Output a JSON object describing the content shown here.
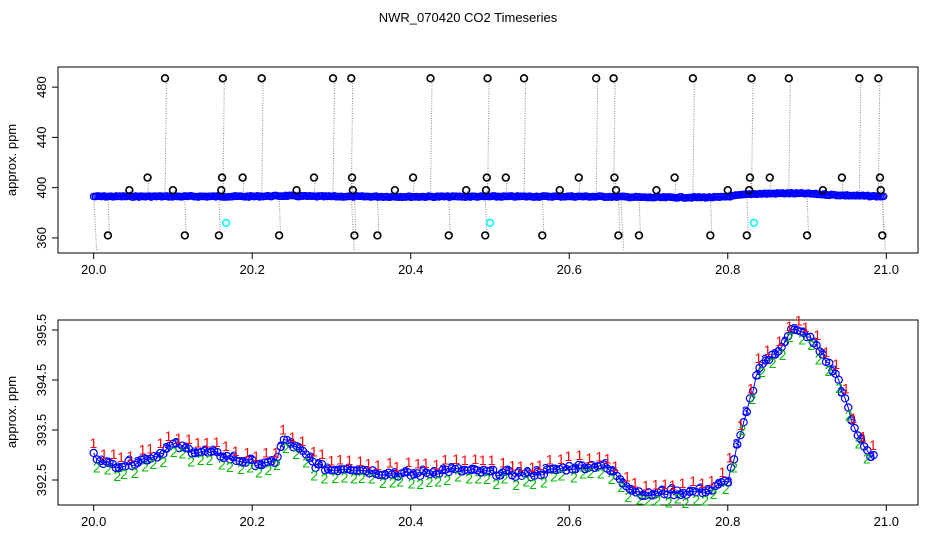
{
  "title": "NWR_070420  CO2 Timeseries",
  "chart_data": [
    {
      "type": "scatter",
      "ylabel": "approx. ppm",
      "xlim": [
        19.955,
        21.04
      ],
      "ylim": [
        348,
        496
      ],
      "xticks": [
        20.0,
        20.2,
        20.4,
        20.6,
        20.8,
        21.0
      ],
      "xtick_labels": [
        "20.0",
        "20.2",
        "20.4",
        "20.6",
        "20.8",
        "21.0"
      ],
      "yticks": [
        360,
        400,
        440,
        480
      ],
      "ytick_labels": [
        "360",
        "400",
        "440",
        "480"
      ],
      "colors": {
        "series": "#0000ff",
        "spikes": "#000000",
        "flagged": "#00ffff",
        "trace": "#888888"
      },
      "baseline": {
        "x": [
          20.0,
          20.1,
          20.2,
          20.24,
          20.28,
          20.4,
          20.6,
          20.66,
          20.7,
          20.79,
          20.83,
          20.87,
          20.9,
          20.94,
          20.995
        ],
        "y": [
          393,
          393,
          393,
          393.5,
          393,
          392.8,
          393,
          392.8,
          392.2,
          392.3,
          395,
          395.5,
          395.3,
          394,
          393
        ]
      },
      "spikes": [
        {
          "x": 20.018,
          "y": 362
        },
        {
          "x": 20.045,
          "y": 398
        },
        {
          "x": 20.068,
          "y": 408
        },
        {
          "x": 20.09,
          "y": 487
        },
        {
          "x": 20.1,
          "y": 398
        },
        {
          "x": 20.115,
          "y": 362
        },
        {
          "x": 20.158,
          "y": 362
        },
        {
          "x": 20.161,
          "y": 398
        },
        {
          "x": 20.162,
          "y": 408
        },
        {
          "x": 20.163,
          "y": 487
        },
        {
          "x": 20.188,
          "y": 408
        },
        {
          "x": 20.212,
          "y": 487
        },
        {
          "x": 20.234,
          "y": 362
        },
        {
          "x": 20.256,
          "y": 398
        },
        {
          "x": 20.278,
          "y": 408
        },
        {
          "x": 20.302,
          "y": 487
        },
        {
          "x": 20.325,
          "y": 487
        },
        {
          "x": 20.326,
          "y": 408
        },
        {
          "x": 20.327,
          "y": 398
        },
        {
          "x": 20.329,
          "y": 362
        },
        {
          "x": 20.358,
          "y": 362
        },
        {
          "x": 20.38,
          "y": 398
        },
        {
          "x": 20.403,
          "y": 408
        },
        {
          "x": 20.425,
          "y": 487
        },
        {
          "x": 20.448,
          "y": 362
        },
        {
          "x": 20.47,
          "y": 398
        },
        {
          "x": 20.494,
          "y": 362
        },
        {
          "x": 20.495,
          "y": 398
        },
        {
          "x": 20.496,
          "y": 408
        },
        {
          "x": 20.497,
          "y": 487
        },
        {
          "x": 20.52,
          "y": 408
        },
        {
          "x": 20.543,
          "y": 487
        },
        {
          "x": 20.566,
          "y": 362
        },
        {
          "x": 20.588,
          "y": 398
        },
        {
          "x": 20.612,
          "y": 408
        },
        {
          "x": 20.634,
          "y": 487
        },
        {
          "x": 20.656,
          "y": 487
        },
        {
          "x": 20.657,
          "y": 408
        },
        {
          "x": 20.659,
          "y": 398
        },
        {
          "x": 20.662,
          "y": 362
        },
        {
          "x": 20.688,
          "y": 362
        },
        {
          "x": 20.71,
          "y": 398
        },
        {
          "x": 20.733,
          "y": 408
        },
        {
          "x": 20.756,
          "y": 487
        },
        {
          "x": 20.778,
          "y": 362
        },
        {
          "x": 20.8,
          "y": 398
        },
        {
          "x": 20.824,
          "y": 362
        },
        {
          "x": 20.827,
          "y": 398
        },
        {
          "x": 20.828,
          "y": 408
        },
        {
          "x": 20.83,
          "y": 487
        },
        {
          "x": 20.853,
          "y": 408
        },
        {
          "x": 20.877,
          "y": 487
        },
        {
          "x": 20.9,
          "y": 362
        },
        {
          "x": 20.92,
          "y": 398
        },
        {
          "x": 20.944,
          "y": 408
        },
        {
          "x": 20.966,
          "y": 487
        },
        {
          "x": 20.99,
          "y": 487
        },
        {
          "x": 20.992,
          "y": 408
        },
        {
          "x": 20.993,
          "y": 398
        },
        {
          "x": 20.995,
          "y": 362
        }
      ],
      "flagged_points": [
        {
          "x": 20.167,
          "y": 372
        },
        {
          "x": 20.5,
          "y": 372
        },
        {
          "x": 20.833,
          "y": 372
        }
      ]
    },
    {
      "type": "scatter",
      "ylabel": "approx. ppm",
      "xlim": [
        19.955,
        21.04
      ],
      "ylim": [
        392.0,
        395.7
      ],
      "xticks": [
        20.0,
        20.2,
        20.4,
        20.6,
        20.8,
        21.0
      ],
      "xtick_labels": [
        "20.0",
        "20.2",
        "20.4",
        "20.6",
        "20.8",
        "21.0"
      ],
      "yticks": [
        392.5,
        393.5,
        394.5,
        395.5
      ],
      "ytick_labels": [
        "392.5",
        "393.5",
        "394.5",
        "395.5"
      ],
      "colors": {
        "line": "#0000ff",
        "markers": "#0000ff",
        "s1": "#ff0000",
        "s2": "#00bb00",
        "s3": "#0000ff"
      },
      "marker_labels": [
        "1",
        "2",
        "3"
      ],
      "series": {
        "x": [
          20.0,
          20.02,
          20.04,
          20.06,
          20.08,
          20.1,
          20.12,
          20.14,
          20.16,
          20.18,
          20.2,
          20.22,
          20.23,
          20.24,
          20.26,
          20.28,
          20.3,
          20.32,
          20.34,
          20.36,
          20.4,
          20.45,
          20.5,
          20.55,
          20.6,
          20.64,
          20.66,
          20.68,
          20.7,
          20.72,
          20.75,
          20.78,
          20.8,
          20.82,
          20.84,
          20.86,
          20.88,
          20.9,
          20.92,
          20.94,
          20.96,
          20.98
        ],
        "y": [
          393.0,
          392.8,
          392.8,
          392.9,
          393.0,
          393.2,
          393.1,
          393.05,
          393.0,
          392.9,
          392.85,
          392.8,
          392.9,
          393.3,
          393.1,
          392.8,
          392.7,
          392.75,
          392.7,
          392.65,
          392.6,
          392.7,
          392.65,
          392.6,
          392.75,
          392.8,
          392.6,
          392.3,
          392.2,
          392.25,
          392.25,
          392.3,
          392.5,
          393.6,
          394.8,
          395.0,
          395.5,
          395.4,
          395.0,
          394.5,
          393.5,
          393.0
        ]
      }
    }
  ]
}
